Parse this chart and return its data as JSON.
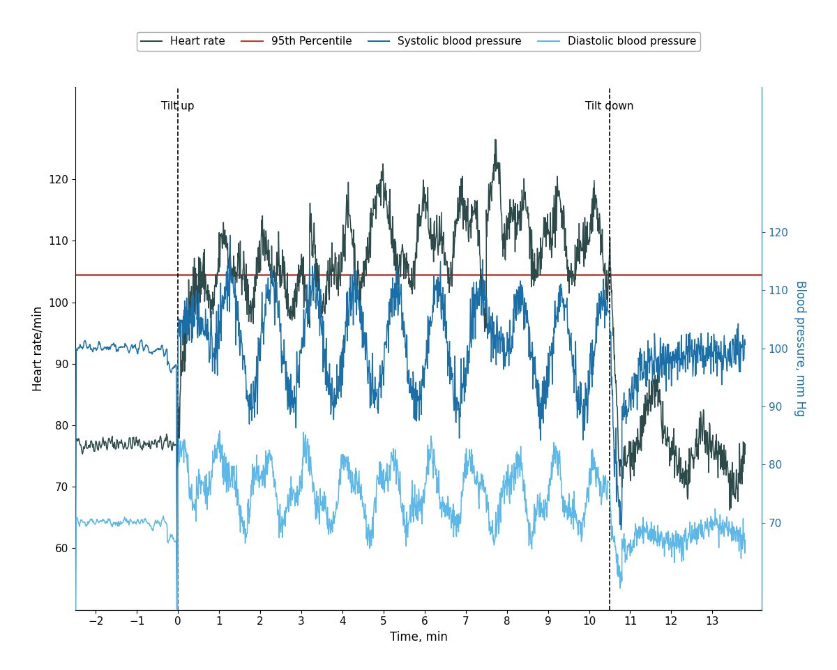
{
  "title": "",
  "xlabel": "Time, min",
  "ylabel_left": "Heart rate/min",
  "ylabel_right": "Blood pressure, mm Hg",
  "xlim": [
    -2.5,
    14.2
  ],
  "ylim_left": [
    50,
    135
  ],
  "ylim_right": [
    55,
    145
  ],
  "xticks": [
    -2,
    -1,
    0,
    1,
    2,
    3,
    4,
    5,
    6,
    7,
    8,
    9,
    10,
    11,
    12,
    13
  ],
  "yticks_left": [
    60,
    70,
    80,
    90,
    100,
    110,
    120
  ],
  "yticks_right": [
    70,
    80,
    90,
    100,
    110,
    120
  ],
  "tilt_up_x": 0,
  "tilt_down_x": 10.5,
  "percentile_95": 104.5,
  "heart_rate_color": "#2d4a4a",
  "percentile_color": "#c0392b",
  "systolic_color": "#1a6fa8",
  "diastolic_color": "#5bb8e8",
  "tilt_label_fontsize": 11,
  "axis_label_fontsize": 12,
  "tick_fontsize": 11,
  "legend_fontsize": 11,
  "right_axis_color": "#1a6fa8",
  "background_color": "#ffffff"
}
